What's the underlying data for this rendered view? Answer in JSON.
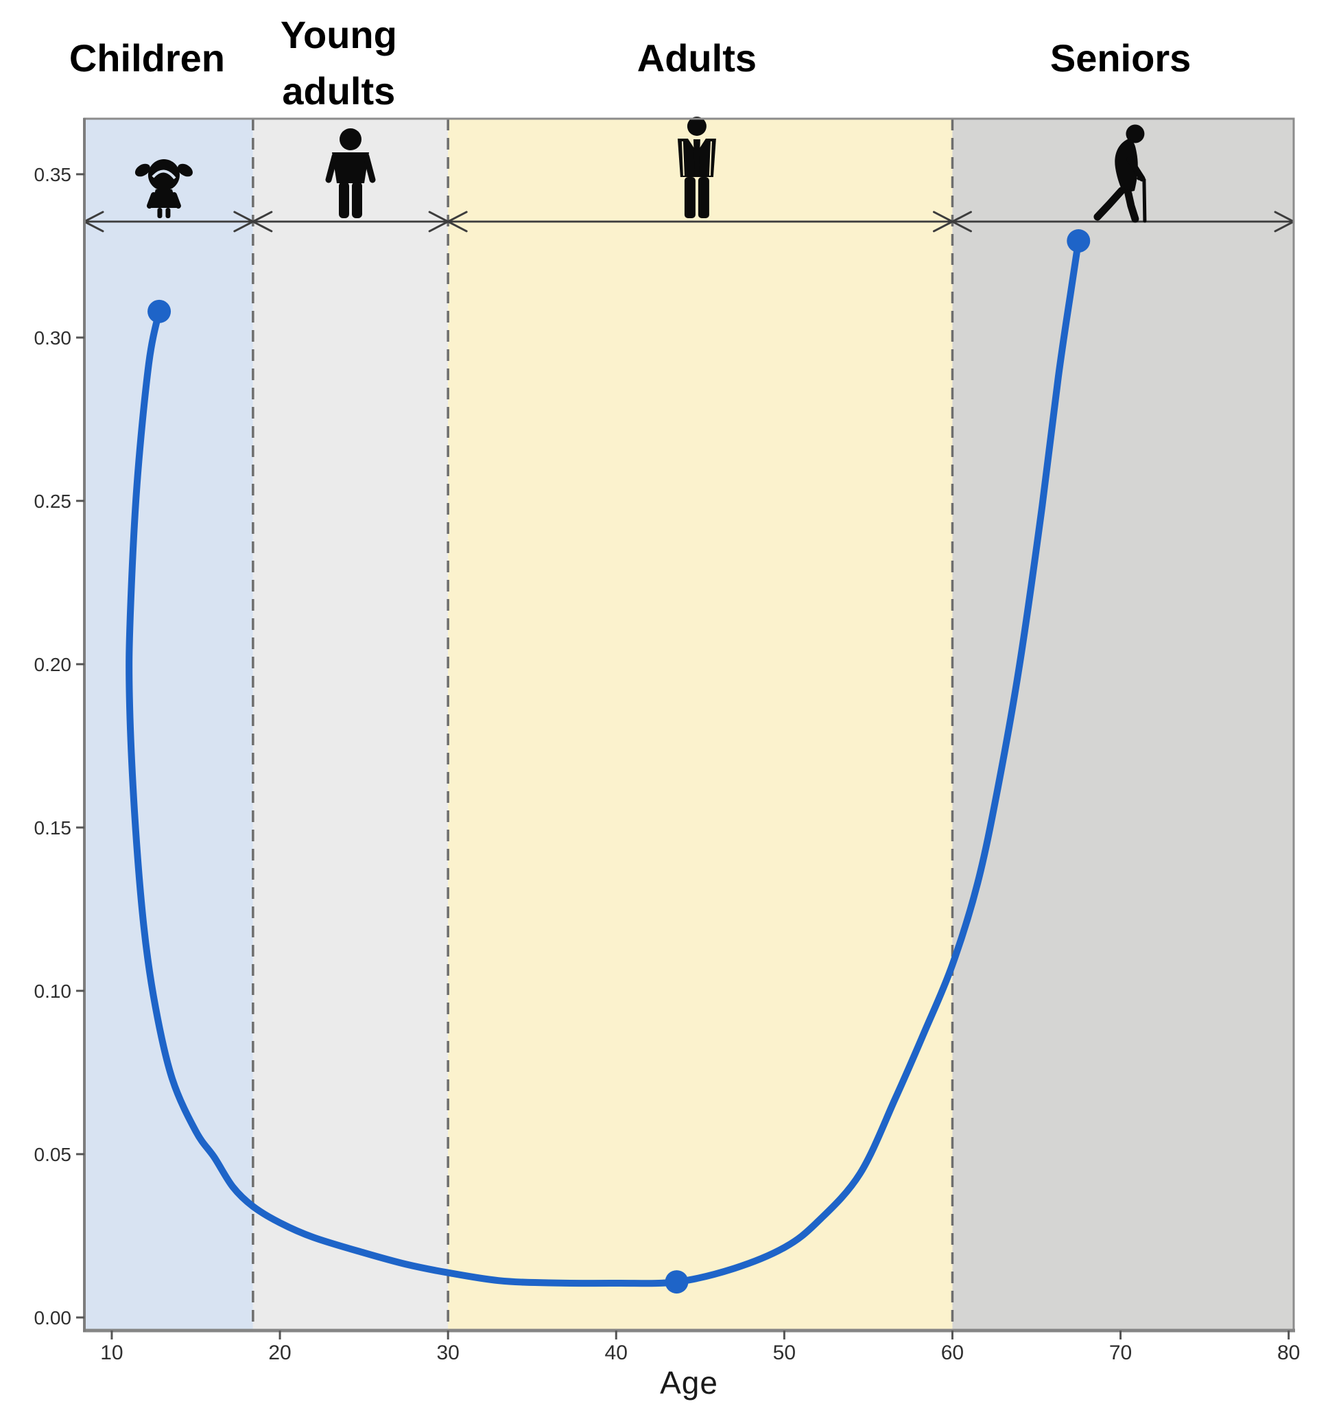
{
  "figure": {
    "background": "#ffffff"
  },
  "chart_data": {
    "type": "line",
    "title": "",
    "xlabel": "Age",
    "ylabel": "",
    "xlim": [
      8.37,
      80.3
    ],
    "ylim": [
      -0.004,
      0.367
    ],
    "grid": false,
    "legend": null,
    "x_ticks": {
      "values": [
        10,
        20,
        30,
        40,
        50,
        60,
        70,
        80
      ],
      "labels": [
        "10",
        "20",
        "30",
        "40",
        "50",
        "60",
        "70",
        "80"
      ]
    },
    "y_ticks": {
      "values": [
        0.0,
        0.05,
        0.1,
        0.15,
        0.2,
        0.25,
        0.3,
        0.35
      ],
      "labels": [
        "0.00",
        "0.05",
        "0.10",
        "0.15",
        "0.20",
        "0.25",
        "0.30",
        "0.35"
      ]
    },
    "regions": [
      {
        "name": "children",
        "label": "Children",
        "label_lines": [
          "Children"
        ],
        "x_start": 8.37,
        "x_end": 18.4,
        "fill": "#d8e3f2",
        "icon": "girl-child-icon",
        "icon_x": 13.1,
        "label_x": 12.1
      },
      {
        "name": "young-adults",
        "label": "Young adults",
        "label_lines": [
          "Young",
          "adults"
        ],
        "x_start": 18.4,
        "x_end": 30.0,
        "fill": "#ebebeb",
        "icon": "young-adult-icon",
        "icon_x": 24.2,
        "label_x": 23.5
      },
      {
        "name": "adults",
        "label": "Adults",
        "label_lines": [
          "Adults"
        ],
        "x_start": 30.0,
        "x_end": 60.0,
        "fill": "#fbf2cd",
        "icon": "business-man-icon",
        "icon_x": 44.8,
        "label_x": 44.8
      },
      {
        "name": "seniors",
        "label": "Seniors",
        "label_lines": [
          "Seniors"
        ],
        "x_start": 60.0,
        "x_end": 80.3,
        "fill": "#d5d5d3",
        "icon": "senior-walking-icon",
        "icon_x": 70.3,
        "label_x": 70.0
      }
    ],
    "boundary_ages": [
      18.4,
      30.0,
      60.0
    ],
    "span_arrow_y": 0.3355,
    "series": [
      {
        "name": "risk-curve",
        "color": "#1e64c8",
        "width": 10,
        "points": [
          [
            12.82,
            0.308
          ],
          [
            12.2,
            0.292
          ],
          [
            11.5,
            0.255
          ],
          [
            11.1,
            0.215
          ],
          [
            11.05,
            0.19
          ],
          [
            11.35,
            0.155
          ],
          [
            11.9,
            0.12
          ],
          [
            12.6,
            0.095
          ],
          [
            13.6,
            0.073
          ],
          [
            15.0,
            0.057
          ],
          [
            16.1,
            0.049
          ],
          [
            17.2,
            0.04
          ],
          [
            18.4,
            0.034
          ],
          [
            20,
            0.029
          ],
          [
            22,
            0.0245
          ],
          [
            25,
            0.0198
          ],
          [
            27.5,
            0.0163
          ],
          [
            30,
            0.0137
          ],
          [
            33,
            0.0113
          ],
          [
            36,
            0.0106
          ],
          [
            40,
            0.0105
          ],
          [
            43.6,
            0.0109
          ],
          [
            47,
            0.015
          ],
          [
            50,
            0.0214
          ],
          [
            52,
            0.0294
          ],
          [
            54.5,
            0.044
          ],
          [
            56.6,
            0.067
          ],
          [
            58.3,
            0.087
          ],
          [
            60,
            0.108
          ],
          [
            61.5,
            0.133
          ],
          [
            62.7,
            0.162
          ],
          [
            64,
            0.2
          ],
          [
            65.3,
            0.247
          ],
          [
            66.3,
            0.288
          ],
          [
            67.1,
            0.316
          ],
          [
            67.5,
            0.3296
          ]
        ]
      }
    ],
    "markers": {
      "color": "#1e64c8",
      "radius": 17,
      "points": [
        [
          12.82,
          0.308
        ],
        [
          43.6,
          0.0109
        ],
        [
          67.5,
          0.3296
        ]
      ]
    },
    "axis": {
      "spine_color": "#8c8c8c",
      "tick_text_color": "#2f2f2f",
      "dash_color": "#6e6e6e",
      "arrow_color": "#3d3d3d",
      "icon_color": "#0b0b0b",
      "label_color": "#000000"
    }
  }
}
